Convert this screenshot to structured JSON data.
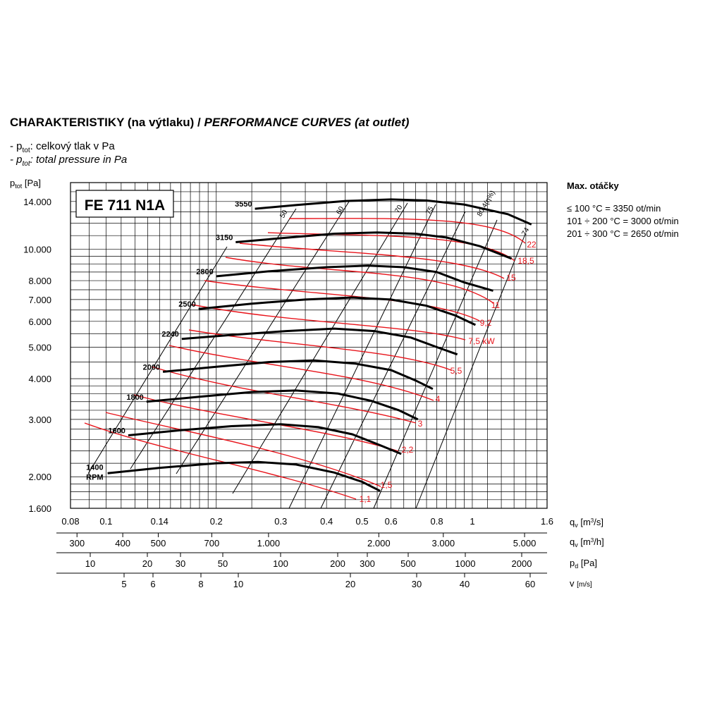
{
  "header": {
    "title_bold": "CHARAKTERISTIKY (na výtlaku) /",
    "title_italic": "PERFORMANCE CURVES (at outlet)",
    "legend_cz": "celkový tlak v Pa",
    "legend_en": "total pressure in Pa",
    "legend_symbol": "p",
    "legend_sub": "tot"
  },
  "max_speed": {
    "heading": "Max. otáčky",
    "lines": [
      "≤ 100 °C = 3350 ot/min",
      "101 ÷ 200 °C = 3000 ot/min",
      "201 ÷ 300 °C = 2650 ot/min"
    ]
  },
  "chart_data": {
    "type": "line",
    "title": "FE 711 N1A",
    "ylabel": "ptot [Pa]",
    "y_scale": "log",
    "ylim": [
      1600,
      16000
    ],
    "yticks": [
      1600,
      2000,
      3000,
      4000,
      5000,
      6000,
      7000,
      8000,
      10000,
      14000
    ],
    "ytick_labels": [
      "1.600",
      "2.000",
      "3.000",
      "4.000",
      "5.000",
      "6.000",
      "7.000",
      "8.000",
      "10.000",
      "14.000"
    ],
    "x_scale": "log",
    "xlim": [
      0.08,
      1.6
    ],
    "x_axes": [
      {
        "label": "qv [m3/s]",
        "ticks": [
          0.08,
          0.1,
          0.14,
          0.2,
          0.3,
          0.4,
          0.5,
          0.6,
          0.8,
          1,
          1.6
        ],
        "tick_labels": [
          "0.08",
          "0.1",
          "0.14",
          "0.2",
          "0.3",
          "0.4",
          "0.5",
          "0.6",
          "0.8",
          "1",
          "1.6"
        ]
      },
      {
        "label": "qv [m3/h]",
        "ticks": [
          300,
          400,
          500,
          700,
          1000,
          2000,
          3000,
          5000
        ],
        "tick_labels": [
          "300",
          "400",
          "500",
          "700",
          "1.000",
          "2.000",
          "3.000",
          "5.000"
        ]
      },
      {
        "label": "pd [Pa]",
        "tick_labels": [
          "10",
          "20",
          "30",
          "50",
          "100",
          "200",
          "300",
          "500",
          "1000",
          "2000"
        ]
      },
      {
        "label": "v [m/s]",
        "tick_labels": [
          "5",
          "6",
          "8",
          "10",
          "20",
          "30",
          "40",
          "60"
        ]
      }
    ],
    "speed_curves": [
      {
        "rpm": "3550",
        "points": [
          [
            0.255,
            13300
          ],
          [
            0.33,
            13650
          ],
          [
            0.45,
            14050
          ],
          [
            0.6,
            14200
          ],
          [
            0.75,
            14100
          ],
          [
            0.95,
            13700
          ],
          [
            1.25,
            12800
          ],
          [
            1.45,
            11900
          ]
        ]
      },
      {
        "rpm": "3150",
        "points": [
          [
            0.226,
            10500
          ],
          [
            0.3,
            10800
          ],
          [
            0.42,
            11150
          ],
          [
            0.55,
            11250
          ],
          [
            0.7,
            11150
          ],
          [
            0.85,
            10850
          ],
          [
            1.05,
            10200
          ],
          [
            1.28,
            9350
          ]
        ]
      },
      {
        "rpm": "2800",
        "points": [
          [
            0.2,
            8250
          ],
          [
            0.28,
            8550
          ],
          [
            0.4,
            8800
          ],
          [
            0.52,
            8900
          ],
          [
            0.65,
            8800
          ],
          [
            0.8,
            8500
          ],
          [
            0.95,
            7900
          ],
          [
            1.14,
            7450
          ]
        ]
      },
      {
        "rpm": "2500",
        "points": [
          [
            0.179,
            6550
          ],
          [
            0.25,
            6800
          ],
          [
            0.35,
            7000
          ],
          [
            0.47,
            7100
          ],
          [
            0.6,
            7000
          ],
          [
            0.75,
            6700
          ],
          [
            0.9,
            6250
          ],
          [
            1.02,
            5850
          ]
        ]
      },
      {
        "rpm": "2240",
        "points": [
          [
            0.161,
            5300
          ],
          [
            0.22,
            5450
          ],
          [
            0.31,
            5600
          ],
          [
            0.42,
            5700
          ],
          [
            0.54,
            5600
          ],
          [
            0.68,
            5350
          ],
          [
            0.8,
            5000
          ],
          [
            0.91,
            4750
          ]
        ]
      },
      {
        "rpm": "2000",
        "points": [
          [
            0.143,
            4200
          ],
          [
            0.2,
            4350
          ],
          [
            0.28,
            4500
          ],
          [
            0.37,
            4550
          ],
          [
            0.48,
            4450
          ],
          [
            0.6,
            4250
          ],
          [
            0.7,
            3950
          ],
          [
            0.78,
            3720
          ]
        ]
      },
      {
        "rpm": "1800",
        "points": [
          [
            0.129,
            3400
          ],
          [
            0.18,
            3520
          ],
          [
            0.25,
            3640
          ],
          [
            0.33,
            3680
          ],
          [
            0.43,
            3600
          ],
          [
            0.53,
            3420
          ],
          [
            0.63,
            3200
          ],
          [
            0.71,
            3000
          ]
        ]
      },
      {
        "rpm": "1600",
        "points": [
          [
            0.115,
            2680
          ],
          [
            0.16,
            2780
          ],
          [
            0.22,
            2860
          ],
          [
            0.3,
            2900
          ],
          [
            0.38,
            2840
          ],
          [
            0.47,
            2700
          ],
          [
            0.56,
            2500
          ],
          [
            0.64,
            2350
          ]
        ]
      },
      {
        "rpm": "1400 RPM",
        "points": [
          [
            0.101,
            2050
          ],
          [
            0.14,
            2130
          ],
          [
            0.2,
            2200
          ],
          [
            0.26,
            2220
          ],
          [
            0.33,
            2180
          ],
          [
            0.42,
            2060
          ],
          [
            0.5,
            1930
          ],
          [
            0.56,
            1810
          ]
        ]
      }
    ],
    "power_labels": [
      "1,1",
      "1,5",
      "2,2",
      "3",
      "4",
      "5,5",
      "7,5 kW",
      "9,2",
      "11",
      "15",
      "18,5",
      "22"
    ],
    "efficiency_labels": [
      "50",
      "60",
      "70",
      "75",
      "80,4(η%)",
      "74"
    ]
  },
  "colors": {
    "speed_curve": "#000000",
    "power_curve": "#e8141b",
    "grid": "#000000"
  }
}
